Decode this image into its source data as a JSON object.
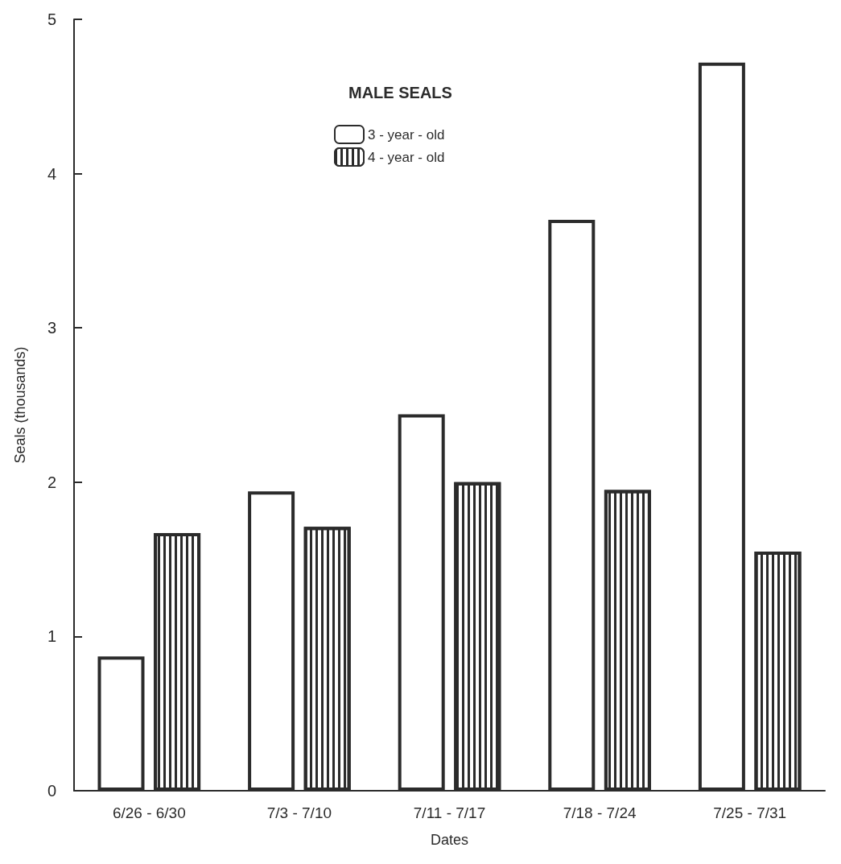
{
  "chart_data": {
    "type": "bar",
    "xlabel": "Dates",
    "ylabel": "Seals (thousands)",
    "legend_title": "MALE SEALS",
    "categories": [
      "6/26 - 6/30",
      "7/3 - 7/10",
      "7/11 - 7/17",
      "7/18 - 7/24",
      "7/25 - 7/31"
    ],
    "series": [
      {
        "name": "3 - year - old",
        "color": "#ffffff",
        "values": [
          0.87,
          1.94,
          2.44,
          3.7,
          4.72
        ]
      },
      {
        "name": "4 - year - old",
        "color": "#ffffff",
        "values": [
          1.67,
          1.71,
          2.0,
          1.95,
          1.55
        ]
      }
    ],
    "ylim": [
      0,
      5
    ],
    "yticks": [
      0,
      1,
      2,
      3,
      4,
      5
    ],
    "grid": false,
    "legend": "top"
  }
}
